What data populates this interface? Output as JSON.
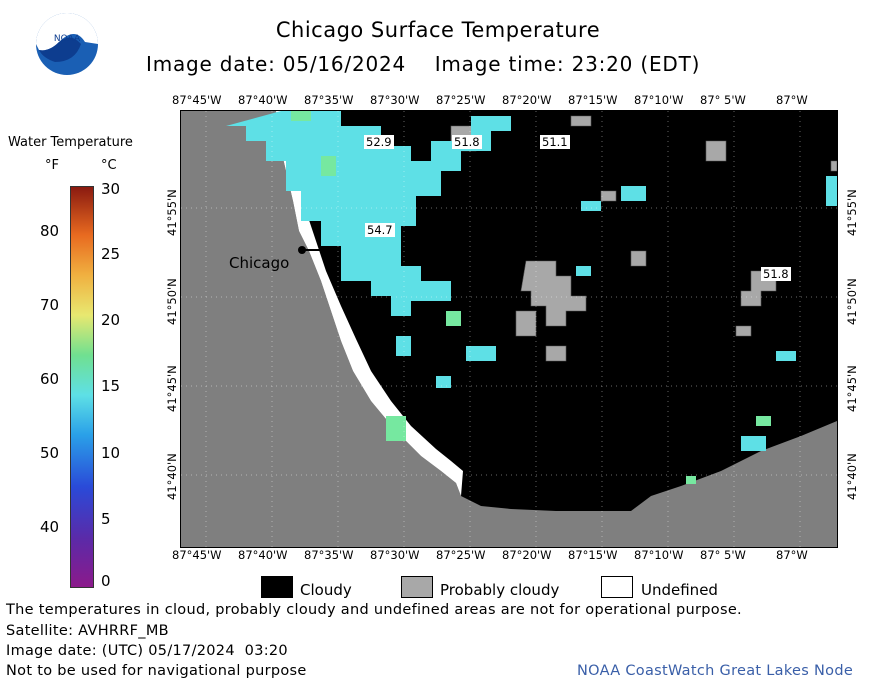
{
  "header": {
    "title": "Chicago Surface Temperature",
    "subtitle": "Image date: 05/16/2024    Image time: 23:20 (EDT)"
  },
  "colorbar": {
    "title": "Water Temperature",
    "unit_f": "°F",
    "unit_c": "°C",
    "f_ticks": [
      "80",
      "70",
      "60",
      "50",
      "40"
    ],
    "c_ticks": [
      "30",
      "25",
      "20",
      "15",
      "10",
      "5",
      "0"
    ]
  },
  "axes": {
    "lon_labels": [
      "87°45'W",
      "87°40'W",
      "87°35'W",
      "87°30'W",
      "87°25'W",
      "87°20'W",
      "87°15'W",
      "87°10'W",
      "87° 5'W",
      "87°W"
    ],
    "lat_labels": [
      "41°55'N",
      "41°50'N",
      "41°45'N",
      "41°40'N"
    ]
  },
  "map": {
    "city_label": "Chicago",
    "temp_labels": [
      "52.9",
      "51.8",
      "51.1",
      "54.7",
      "51.8"
    ],
    "colors": {
      "land": "#7f7f7f",
      "cloud": "#000000",
      "probably_cloudy": "#a8a8a8",
      "water_cool": "#5ee0e6",
      "water_warm": "#76e8a0"
    }
  },
  "legend": {
    "cloudy": "Cloudy",
    "probably_cloudy": "Probably cloudy",
    "undefined": "Undefined"
  },
  "footer": {
    "line1": "The temperatures in cloud, probably cloudy and undefined areas are not for operational purpose.",
    "satellite": "Satellite: AVHRRF_MB",
    "image_date_utc": "Image date: (UTC) 05/17/2024  03:20",
    "nav_warning": "Not to be used for navigational purpose",
    "credit": "NOAA CoastWatch Great Lakes Node"
  }
}
